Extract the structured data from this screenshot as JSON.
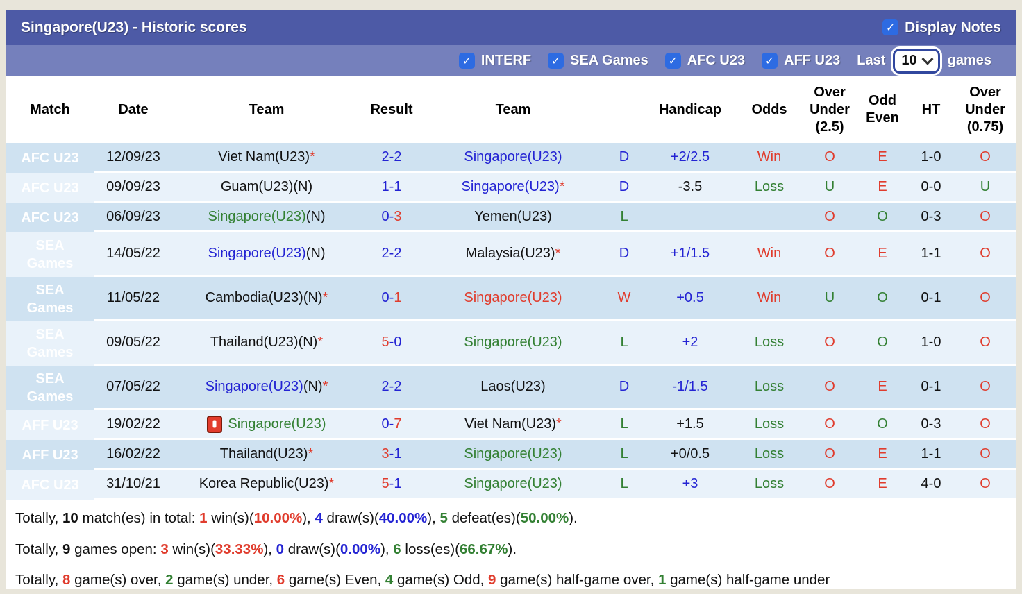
{
  "header": {
    "title": "Singapore(U23) - Historic scores",
    "display_notes_label": "Display Notes"
  },
  "filterbar": {
    "filters": [
      {
        "label": "INTERF",
        "checked": true
      },
      {
        "label": "SEA Games",
        "checked": true
      },
      {
        "label": "AFC U23",
        "checked": true
      },
      {
        "label": "AFF U23",
        "checked": true
      }
    ],
    "last_label": "Last",
    "select_value": "10",
    "games_label": "games"
  },
  "palette": {
    "titlebar_bg": "#4d5aa6",
    "filterbar_bg": "#7580bc",
    "checkbox_blue": "#2d6be2",
    "row_dark": "#cfe2f1",
    "row_light": "#e9f2fa",
    "afc_red": "#df4b35",
    "sea_brown": "#8e7341",
    "aff_olive": "#a89a3e",
    "text_red": "#e03c2d",
    "text_blue": "#2323d3",
    "text_green": "#338033"
  },
  "table": {
    "columns": [
      "Match",
      "Date",
      "Team",
      "Result",
      "Team",
      "",
      "Handicap",
      "Odds",
      "Over Under (2.5)",
      "Odd Even",
      "HT",
      "Over Under (0.75)"
    ],
    "rows": [
      {
        "comp": "AFC U23",
        "comp_color": "#df4b35",
        "tall": false,
        "date": "12/09/23",
        "home": [
          {
            "t": "Viet Nam(U23)",
            "c": "k"
          },
          {
            "t": "*",
            "c": "r"
          }
        ],
        "result": [
          {
            "t": "2-2",
            "c": "b"
          }
        ],
        "away": [
          {
            "t": "Singapore(U23)",
            "c": "b"
          }
        ],
        "wdl": {
          "t": "D",
          "c": "b"
        },
        "handicap": {
          "t": "+2/2.5",
          "c": "b"
        },
        "odds": {
          "t": "Win",
          "c": "r"
        },
        "ou25": {
          "t": "O",
          "c": "r"
        },
        "oddeven": {
          "t": "E",
          "c": "r"
        },
        "ht": "1-0",
        "ou075": {
          "t": "O",
          "c": "r"
        }
      },
      {
        "comp": "AFC U23",
        "comp_color": "#df4b35",
        "tall": false,
        "date": "09/09/23",
        "home": [
          {
            "t": "Guam(U23)(N)",
            "c": "k"
          }
        ],
        "result": [
          {
            "t": "1-1",
            "c": "b"
          }
        ],
        "away": [
          {
            "t": "Singapore(U23)",
            "c": "b"
          },
          {
            "t": "*",
            "c": "r"
          }
        ],
        "wdl": {
          "t": "D",
          "c": "b"
        },
        "handicap": {
          "t": "-3.5",
          "c": "k"
        },
        "odds": {
          "t": "Loss",
          "c": "g"
        },
        "ou25": {
          "t": "U",
          "c": "g"
        },
        "oddeven": {
          "t": "E",
          "c": "r"
        },
        "ht": "0-0",
        "ou075": {
          "t": "U",
          "c": "g"
        }
      },
      {
        "comp": "AFC U23",
        "comp_color": "#df4b35",
        "tall": false,
        "date": "06/09/23",
        "home": [
          {
            "t": "Singapore(U23)",
            "c": "g"
          },
          {
            "t": "(N)",
            "c": "k"
          }
        ],
        "result": [
          {
            "t": "0-",
            "c": "b"
          },
          {
            "t": "3",
            "c": "r"
          }
        ],
        "away": [
          {
            "t": "Yemen(U23)",
            "c": "k"
          }
        ],
        "wdl": {
          "t": "L",
          "c": "g"
        },
        "handicap": {
          "t": "",
          "c": "k"
        },
        "odds": {
          "t": "",
          "c": "k"
        },
        "ou25": {
          "t": "O",
          "c": "r"
        },
        "oddeven": {
          "t": "O",
          "c": "g"
        },
        "ht": "0-3",
        "ou075": {
          "t": "O",
          "c": "r"
        }
      },
      {
        "comp": "SEA\nGames",
        "comp_color": "#8e7341",
        "tall": true,
        "date": "14/05/22",
        "home": [
          {
            "t": "Singapore(U23)",
            "c": "b"
          },
          {
            "t": "(N)",
            "c": "k"
          }
        ],
        "result": [
          {
            "t": "2-2",
            "c": "b"
          }
        ],
        "away": [
          {
            "t": "Malaysia(U23)",
            "c": "k"
          },
          {
            "t": "*",
            "c": "r"
          }
        ],
        "wdl": {
          "t": "D",
          "c": "b"
        },
        "handicap": {
          "t": "+1/1.5",
          "c": "b"
        },
        "odds": {
          "t": "Win",
          "c": "r"
        },
        "ou25": {
          "t": "O",
          "c": "r"
        },
        "oddeven": {
          "t": "E",
          "c": "r"
        },
        "ht": "1-1",
        "ou075": {
          "t": "O",
          "c": "r"
        }
      },
      {
        "comp": "SEA\nGames",
        "comp_color": "#8e7341",
        "tall": true,
        "date": "11/05/22",
        "home": [
          {
            "t": "Cambodia(U23)(N)",
            "c": "k"
          },
          {
            "t": "*",
            "c": "r"
          }
        ],
        "result": [
          {
            "t": "0-",
            "c": "b"
          },
          {
            "t": "1",
            "c": "r"
          }
        ],
        "away": [
          {
            "t": "Singapore(U23)",
            "c": "r"
          }
        ],
        "wdl": {
          "t": "W",
          "c": "r"
        },
        "handicap": {
          "t": "+0.5",
          "c": "b"
        },
        "odds": {
          "t": "Win",
          "c": "r"
        },
        "ou25": {
          "t": "U",
          "c": "g"
        },
        "oddeven": {
          "t": "O",
          "c": "g"
        },
        "ht": "0-1",
        "ou075": {
          "t": "O",
          "c": "r"
        }
      },
      {
        "comp": "SEA\nGames",
        "comp_color": "#8e7341",
        "tall": true,
        "date": "09/05/22",
        "home": [
          {
            "t": "Thailand(U23)(N)",
            "c": "k"
          },
          {
            "t": "*",
            "c": "r"
          }
        ],
        "result": [
          {
            "t": "5",
            "c": "r"
          },
          {
            "t": "-0",
            "c": "b"
          }
        ],
        "away": [
          {
            "t": "Singapore(U23)",
            "c": "g"
          }
        ],
        "wdl": {
          "t": "L",
          "c": "g"
        },
        "handicap": {
          "t": "+2",
          "c": "b"
        },
        "odds": {
          "t": "Loss",
          "c": "g"
        },
        "ou25": {
          "t": "O",
          "c": "r"
        },
        "oddeven": {
          "t": "O",
          "c": "g"
        },
        "ht": "1-0",
        "ou075": {
          "t": "O",
          "c": "r"
        }
      },
      {
        "comp": "SEA\nGames",
        "comp_color": "#8e7341",
        "tall": true,
        "date": "07/05/22",
        "home": [
          {
            "t": "Singapore(U23)",
            "c": "b"
          },
          {
            "t": "(N)",
            "c": "k"
          },
          {
            "t": "*",
            "c": "r"
          }
        ],
        "result": [
          {
            "t": "2-2",
            "c": "b"
          }
        ],
        "away": [
          {
            "t": "Laos(U23)",
            "c": "k"
          }
        ],
        "wdl": {
          "t": "D",
          "c": "b"
        },
        "handicap": {
          "t": "-1/1.5",
          "c": "b"
        },
        "odds": {
          "t": "Loss",
          "c": "g"
        },
        "ou25": {
          "t": "O",
          "c": "r"
        },
        "oddeven": {
          "t": "E",
          "c": "r"
        },
        "ht": "0-1",
        "ou075": {
          "t": "O",
          "c": "r"
        }
      },
      {
        "comp": "AFF U23",
        "comp_color": "#a89a3e",
        "tall": false,
        "date": "19/02/22",
        "home": [
          {
            "icon": "red-card-icon"
          },
          {
            "t": "Singapore(U23)",
            "c": "g"
          }
        ],
        "result": [
          {
            "t": "0-",
            "c": "b"
          },
          {
            "t": "7",
            "c": "r"
          }
        ],
        "away": [
          {
            "t": "Viet Nam(U23)",
            "c": "k"
          },
          {
            "t": "*",
            "c": "r"
          }
        ],
        "wdl": {
          "t": "L",
          "c": "g"
        },
        "handicap": {
          "t": "+1.5",
          "c": "k"
        },
        "odds": {
          "t": "Loss",
          "c": "g"
        },
        "ou25": {
          "t": "O",
          "c": "r"
        },
        "oddeven": {
          "t": "O",
          "c": "g"
        },
        "ht": "0-3",
        "ou075": {
          "t": "O",
          "c": "r"
        }
      },
      {
        "comp": "AFF U23",
        "comp_color": "#a89a3e",
        "tall": false,
        "date": "16/02/22",
        "home": [
          {
            "t": "Thailand(U23)",
            "c": "k"
          },
          {
            "t": "*",
            "c": "r"
          }
        ],
        "result": [
          {
            "t": "3",
            "c": "r"
          },
          {
            "t": "-1",
            "c": "b"
          }
        ],
        "away": [
          {
            "t": "Singapore(U23)",
            "c": "g"
          }
        ],
        "wdl": {
          "t": "L",
          "c": "g"
        },
        "handicap": {
          "t": "+0/0.5",
          "c": "k"
        },
        "odds": {
          "t": "Loss",
          "c": "g"
        },
        "ou25": {
          "t": "O",
          "c": "r"
        },
        "oddeven": {
          "t": "E",
          "c": "r"
        },
        "ht": "1-1",
        "ou075": {
          "t": "O",
          "c": "r"
        }
      },
      {
        "comp": "AFC U23",
        "comp_color": "#df4b35",
        "tall": false,
        "date": "31/10/21",
        "home": [
          {
            "t": "Korea Republic(U23)",
            "c": "k"
          },
          {
            "t": "*",
            "c": "r"
          }
        ],
        "result": [
          {
            "t": "5",
            "c": "r"
          },
          {
            "t": "-1",
            "c": "b"
          }
        ],
        "away": [
          {
            "t": "Singapore(U23)",
            "c": "g"
          }
        ],
        "wdl": {
          "t": "L",
          "c": "g"
        },
        "handicap": {
          "t": "+3",
          "c": "b"
        },
        "odds": {
          "t": "Loss",
          "c": "g"
        },
        "ou25": {
          "t": "O",
          "c": "r"
        },
        "oddeven": {
          "t": "E",
          "c": "r"
        },
        "ht": "4-0",
        "ou075": {
          "t": "O",
          "c": "r"
        }
      }
    ]
  },
  "summary_lines": [
    [
      {
        "t": "Totally, "
      },
      {
        "t": "10",
        "b": 1
      },
      {
        "t": " match(es) in total: "
      },
      {
        "t": "1",
        "c": "r",
        "b": 1
      },
      {
        "t": " win(s)("
      },
      {
        "t": "10.00%",
        "c": "r",
        "b": 1
      },
      {
        "t": "), "
      },
      {
        "t": "4",
        "c": "b",
        "b": 1
      },
      {
        "t": " draw(s)("
      },
      {
        "t": "40.00%",
        "c": "b",
        "b": 1
      },
      {
        "t": "), "
      },
      {
        "t": "5",
        "c": "g",
        "b": 1
      },
      {
        "t": " defeat(es)("
      },
      {
        "t": "50.00%",
        "c": "g",
        "b": 1
      },
      {
        "t": ")."
      }
    ],
    [
      {
        "t": "Totally, "
      },
      {
        "t": "9",
        "b": 1
      },
      {
        "t": " games open: "
      },
      {
        "t": "3",
        "c": "r",
        "b": 1
      },
      {
        "t": " win(s)("
      },
      {
        "t": "33.33%",
        "c": "r",
        "b": 1
      },
      {
        "t": "), "
      },
      {
        "t": "0",
        "c": "b",
        "b": 1
      },
      {
        "t": " draw(s)("
      },
      {
        "t": "0.00%",
        "c": "b",
        "b": 1
      },
      {
        "t": "), "
      },
      {
        "t": "6",
        "c": "g",
        "b": 1
      },
      {
        "t": " loss(es)("
      },
      {
        "t": "66.67%",
        "c": "g",
        "b": 1
      },
      {
        "t": ")."
      }
    ],
    [
      {
        "t": "Totally, "
      },
      {
        "t": "8",
        "c": "r",
        "b": 1
      },
      {
        "t": " game(s) over, "
      },
      {
        "t": "2",
        "c": "g",
        "b": 1
      },
      {
        "t": " game(s) under, "
      },
      {
        "t": "6",
        "c": "r",
        "b": 1
      },
      {
        "t": " game(s) Even, "
      },
      {
        "t": "4",
        "c": "g",
        "b": 1
      },
      {
        "t": " game(s) Odd, "
      },
      {
        "t": "9",
        "c": "r",
        "b": 1
      },
      {
        "t": " game(s) half-game over, "
      },
      {
        "t": "1",
        "c": "g",
        "b": 1
      },
      {
        "t": " game(s) half-game under"
      }
    ]
  ]
}
